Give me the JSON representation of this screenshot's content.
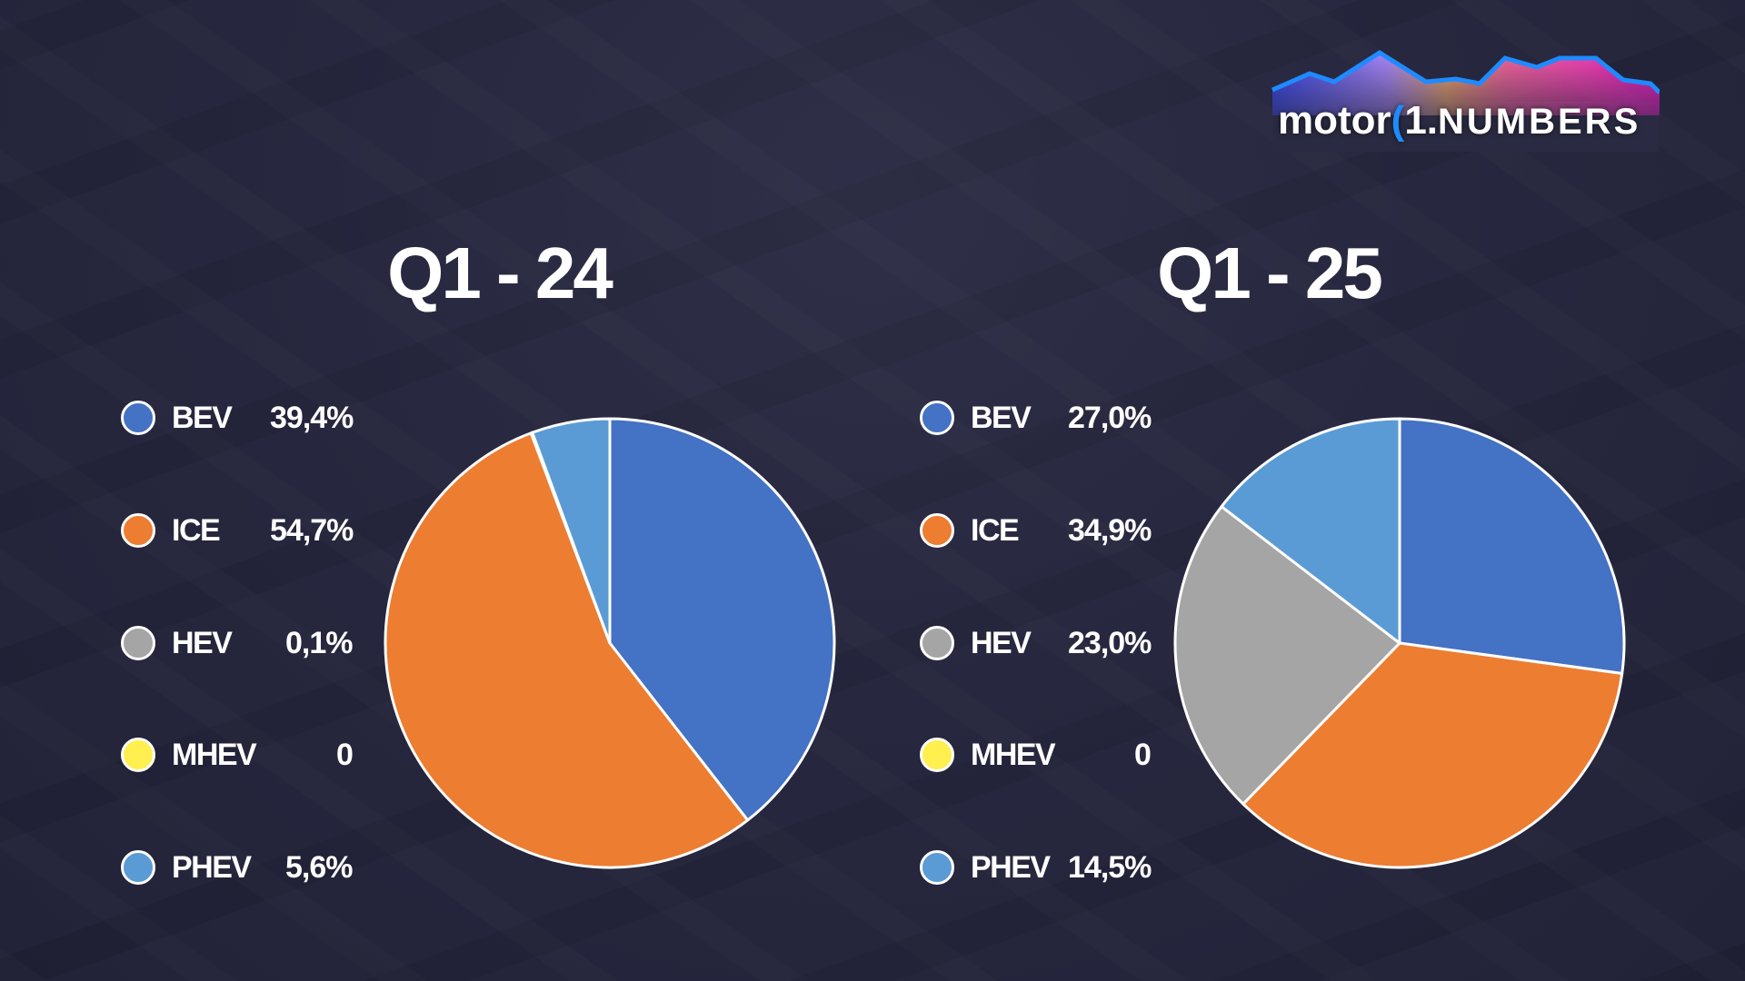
{
  "logo": {
    "text": "motor1.NUMBERS"
  },
  "colors": {
    "BEV": "#4472c4",
    "ICE": "#ed7d31",
    "HEV": "#a5a5a5",
    "MHEV": "#ffef4f",
    "PHEV": "#5b9bd5"
  },
  "chart_data": [
    {
      "type": "pie",
      "title": "Q1 - 24",
      "categories": [
        "BEV",
        "ICE",
        "HEV",
        "MHEV",
        "PHEV"
      ],
      "values": [
        39.4,
        54.7,
        0.1,
        0,
        5.6
      ],
      "labels": [
        "39,4%",
        "54,7%",
        "0,1%",
        "0",
        "5,6%"
      ],
      "legend": "left"
    },
    {
      "type": "pie",
      "title": "Q1 - 25",
      "categories": [
        "BEV",
        "ICE",
        "HEV",
        "MHEV",
        "PHEV"
      ],
      "values": [
        27.0,
        34.9,
        23.0,
        0,
        14.5
      ],
      "labels": [
        "27,0%",
        "34,9%",
        "23,0%",
        "0",
        "14,5%"
      ],
      "legend": "left"
    }
  ]
}
